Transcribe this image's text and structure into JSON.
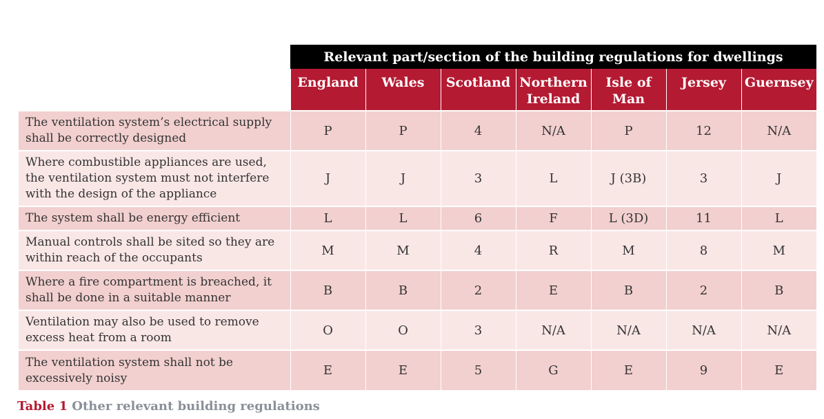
{
  "header": {
    "banner": "Relevant part/section of the building regulations for dwellings",
    "countries": [
      [
        "England"
      ],
      [
        "Wales"
      ],
      [
        "Scotland"
      ],
      [
        "Northern",
        "Ireland"
      ],
      [
        "Isle of",
        "Man"
      ],
      [
        "Jersey"
      ],
      [
        "Guernsey"
      ]
    ]
  },
  "rows": [
    {
      "requirement": [
        "The ventilation system’s electrical supply",
        "shall be correctly designed"
      ],
      "values": [
        "P",
        "P",
        "4",
        "N/A",
        "P",
        "12",
        "N/A"
      ]
    },
    {
      "requirement": [
        "Where combustible appliances are used,",
        "the ventilation system must not interfere",
        "with the design of the appliance"
      ],
      "values": [
        "J",
        "J",
        "3",
        "L",
        "J (3B)",
        "3",
        "J"
      ]
    },
    {
      "requirement": [
        "The system shall be energy efficient"
      ],
      "values": [
        "L",
        "L",
        "6",
        "F",
        "L (3D)",
        "11",
        "L"
      ]
    },
    {
      "requirement": [
        "Manual controls shall be sited so they are",
        "within reach of the occupants"
      ],
      "values": [
        "M",
        "M",
        "4",
        "R",
        "M",
        "8",
        "M"
      ]
    },
    {
      "requirement": [
        "Where a fire compartment is breached, it",
        "shall be done in a suitable manner"
      ],
      "values": [
        "B",
        "B",
        "2",
        "E",
        "B",
        "2",
        "B"
      ]
    },
    {
      "requirement": [
        "Ventilation may also be used to remove",
        "excess heat from a room"
      ],
      "values": [
        "O",
        "O",
        "3",
        "N/A",
        "N/A",
        "N/A",
        "N/A"
      ]
    },
    {
      "requirement": [
        "The ventilation system shall not be",
        "excessively noisy"
      ],
      "values": [
        "E",
        "E",
        "5",
        "G",
        "E",
        "9",
        "E"
      ]
    }
  ],
  "caption": {
    "number": "Table 1",
    "text": "Other relevant building regulations"
  },
  "colors": {
    "header_red": "#b41a32",
    "banner_black": "#000000",
    "row_dark": "#f2d0cf",
    "row_light": "#f9e7e6",
    "caption_grey": "#8a8f98"
  }
}
